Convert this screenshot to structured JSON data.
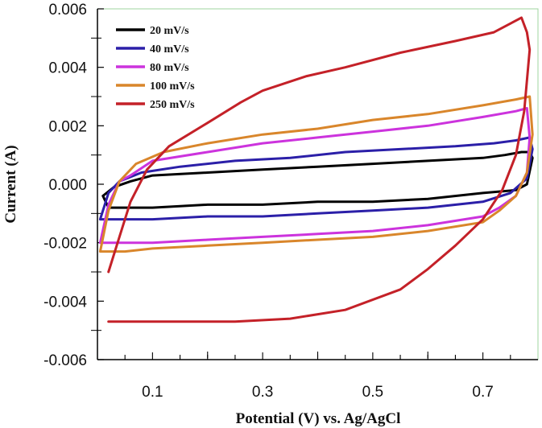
{
  "chart_data": {
    "type": "line",
    "title": "",
    "xlabel": "Potential (V) vs. Ag/AgCl",
    "ylabel": "Current (A)",
    "xlim": [
      0.0,
      0.8
    ],
    "ylim": [
      -0.006,
      0.006
    ],
    "xticks": [
      0.1,
      0.3,
      0.5,
      0.7
    ],
    "xtick_labels": [
      "0.1",
      "0.3",
      "0.5",
      "0.7"
    ],
    "yticks": [
      -0.006,
      -0.004,
      -0.002,
      0.0,
      0.002,
      0.004,
      0.006
    ],
    "ytick_labels": [
      "-0.006",
      "-0.004",
      "-0.002",
      "0.000",
      "0.002",
      "0.004",
      "0.006"
    ],
    "grid": false,
    "legend_position": "top-left",
    "series": [
      {
        "name": "20 mV/s",
        "color": "#000000",
        "x": [
          0.01,
          0.03,
          0.06,
          0.1,
          0.2,
          0.3,
          0.4,
          0.5,
          0.6,
          0.7,
          0.74,
          0.77,
          0.785,
          0.79,
          0.78,
          0.76,
          0.7,
          0.6,
          0.5,
          0.4,
          0.3,
          0.2,
          0.1,
          0.05,
          0.02,
          0.01
        ],
        "y": [
          -0.0004,
          -0.0001,
          0.0001,
          0.0003,
          0.0004,
          0.0005,
          0.0006,
          0.0007,
          0.0008,
          0.0009,
          0.001,
          0.0011,
          0.0011,
          0.0009,
          0.0,
          -0.0002,
          -0.0003,
          -0.0005,
          -0.0006,
          -0.0006,
          -0.0007,
          -0.0007,
          -0.0008,
          -0.0008,
          -0.0008,
          -0.0004
        ]
      },
      {
        "name": "40 mV/s",
        "color": "#2b1fa8",
        "x": [
          0.005,
          0.02,
          0.04,
          0.08,
          0.15,
          0.25,
          0.35,
          0.45,
          0.55,
          0.65,
          0.72,
          0.76,
          0.785,
          0.79,
          0.78,
          0.75,
          0.7,
          0.6,
          0.5,
          0.4,
          0.3,
          0.2,
          0.1,
          0.05,
          0.01,
          0.005
        ],
        "y": [
          -0.0012,
          -0.0003,
          0.0001,
          0.0004,
          0.0006,
          0.0008,
          0.0009,
          0.0011,
          0.0012,
          0.0013,
          0.0014,
          0.0015,
          0.0016,
          0.0012,
          0.0002,
          -0.0003,
          -0.0006,
          -0.0008,
          -0.0009,
          -0.001,
          -0.0011,
          -0.0011,
          -0.0012,
          -0.0012,
          -0.0012,
          -0.0012
        ]
      },
      {
        "name": "80 mV/s",
        "color": "#cc33dd",
        "x": [
          0.005,
          0.02,
          0.04,
          0.06,
          0.1,
          0.2,
          0.3,
          0.4,
          0.5,
          0.6,
          0.7,
          0.76,
          0.78,
          0.785,
          0.78,
          0.76,
          0.73,
          0.7,
          0.6,
          0.5,
          0.4,
          0.3,
          0.2,
          0.1,
          0.05,
          0.005
        ],
        "y": [
          -0.002,
          -0.0007,
          0.0001,
          0.0003,
          0.0008,
          0.0011,
          0.0014,
          0.0016,
          0.0018,
          0.002,
          0.0023,
          0.0025,
          0.0026,
          0.0016,
          0.0004,
          -0.0004,
          -0.0008,
          -0.0011,
          -0.0014,
          -0.0016,
          -0.0017,
          -0.0018,
          -0.0019,
          -0.002,
          -0.002,
          -0.002
        ]
      },
      {
        "name": "100 mV/s",
        "color": "#d9862b",
        "x": [
          0.005,
          0.02,
          0.04,
          0.07,
          0.12,
          0.2,
          0.3,
          0.4,
          0.5,
          0.6,
          0.7,
          0.76,
          0.785,
          0.79,
          0.78,
          0.76,
          0.73,
          0.7,
          0.6,
          0.5,
          0.4,
          0.3,
          0.2,
          0.1,
          0.05,
          0.005
        ],
        "y": [
          -0.0023,
          -0.0009,
          0.0001,
          0.0007,
          0.0011,
          0.0014,
          0.0017,
          0.0019,
          0.0022,
          0.0024,
          0.0027,
          0.0029,
          0.003,
          0.0017,
          0.0004,
          -0.0004,
          -0.0009,
          -0.0013,
          -0.0016,
          -0.0018,
          -0.0019,
          -0.002,
          -0.0021,
          -0.0022,
          -0.0023,
          -0.0023
        ]
      },
      {
        "name": "250 mV/s",
        "color": "#c42128",
        "x": [
          0.02,
          0.04,
          0.06,
          0.09,
          0.13,
          0.2,
          0.26,
          0.3,
          0.38,
          0.45,
          0.55,
          0.65,
          0.72,
          0.77,
          0.78,
          0.785,
          0.775,
          0.76,
          0.735,
          0.7,
          0.65,
          0.6,
          0.55,
          0.45,
          0.35,
          0.25,
          0.15,
          0.05,
          0.02
        ],
        "y": [
          -0.003,
          -0.0018,
          -0.0006,
          0.0005,
          0.0013,
          0.0021,
          0.0028,
          0.0032,
          0.0037,
          0.004,
          0.0045,
          0.0049,
          0.0052,
          0.0057,
          0.0052,
          0.0046,
          0.0025,
          0.001,
          -0.0002,
          -0.0012,
          -0.0021,
          -0.0029,
          -0.0036,
          -0.0043,
          -0.0046,
          -0.0047,
          -0.0047,
          -0.0047,
          -0.0047
        ]
      }
    ]
  }
}
